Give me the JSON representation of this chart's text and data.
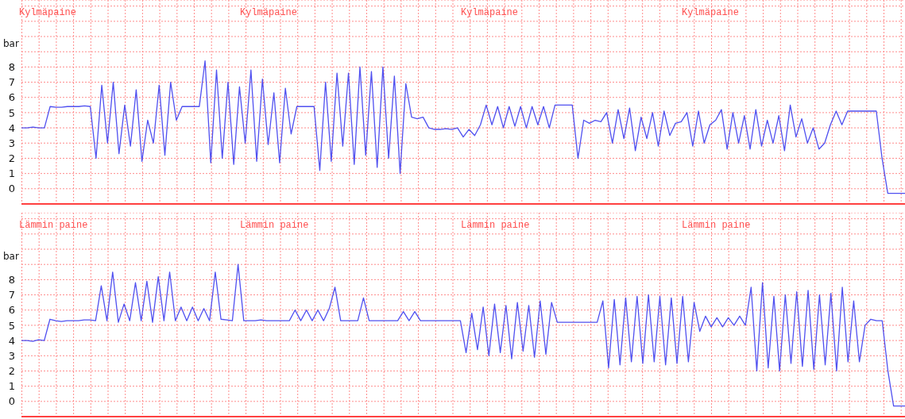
{
  "chart_data": [
    {
      "type": "line",
      "ylabel": "bar",
      "annotations": [
        "Kylmäpaine",
        "Kylmäpaine",
        "Kylmäpaine",
        "Kylmäpaine"
      ],
      "categories": [
        null,
        null,
        null,
        null,
        null,
        null,
        null,
        null,
        null,
        null,
        null,
        null,
        null,
        null,
        null,
        null,
        null,
        null,
        null,
        null,
        null,
        null,
        null,
        null,
        null,
        null,
        null,
        null,
        null,
        null,
        null,
        null,
        null,
        null,
        null,
        null,
        null,
        null,
        null,
        null,
        null,
        null,
        null,
        null,
        null,
        null,
        null,
        null,
        null,
        null,
        null,
        null,
        null,
        null,
        null,
        null,
        null,
        null,
        null,
        null,
        null,
        null,
        null,
        null,
        null,
        null,
        null,
        null,
        null,
        null,
        null,
        null,
        null,
        null,
        null,
        null,
        null,
        null,
        null,
        null,
        null,
        null,
        null,
        null,
        null,
        null,
        null,
        null,
        null,
        null,
        null,
        null,
        null,
        null,
        null,
        null,
        null,
        null,
        null,
        null,
        null,
        null,
        null,
        null,
        null,
        null,
        null,
        null,
        null,
        null,
        null,
        null,
        null,
        null,
        null,
        null,
        null,
        null,
        null,
        null,
        null,
        null,
        null,
        null,
        null,
        null,
        null,
        null,
        null,
        null,
        null,
        null,
        null,
        null,
        null,
        null,
        null,
        null,
        null,
        null,
        null,
        null,
        null,
        null,
        null,
        null,
        null,
        null,
        null,
        null,
        null,
        null,
        null,
        null,
        null
      ],
      "series": [
        {
          "color": "#5050f0",
          "values": [
            4.0,
            4.0,
            4.05,
            4.0,
            4.0,
            5.4,
            5.35,
            5.35,
            5.4,
            5.4,
            5.4,
            5.45,
            5.4,
            2.0,
            6.8,
            3.0,
            7.0,
            2.3,
            5.5,
            2.8,
            6.5,
            1.8,
            4.5,
            3.0,
            6.8,
            2.2,
            7.0,
            4.5,
            5.4,
            5.4,
            5.4,
            5.4,
            8.4,
            1.7,
            7.8,
            2.0,
            7.0,
            1.6,
            6.7,
            3.0,
            7.8,
            1.8,
            7.2,
            2.9,
            6.3,
            1.7,
            6.6,
            3.6,
            5.4,
            5.4,
            5.4,
            5.4,
            1.2,
            7.0,
            1.8,
            7.6,
            2.8,
            7.6,
            1.6,
            8.0,
            2.2,
            7.7,
            1.4,
            8.0,
            2.0,
            7.4,
            1.0,
            6.9,
            4.7,
            4.6,
            4.7,
            4.0,
            3.9,
            3.9,
            3.95,
            3.9,
            4.0,
            3.4,
            3.9,
            3.5,
            4.2,
            5.5,
            4.2,
            5.4,
            4.0,
            5.4,
            4.1,
            5.4,
            4.0,
            5.4,
            4.2,
            5.4,
            4.0,
            5.5,
            5.5,
            5.5,
            5.5,
            2.0,
            4.5,
            4.3,
            4.5,
            4.4,
            5.0,
            3.0,
            5.2,
            3.3,
            5.3,
            2.5,
            4.7,
            3.3,
            5.0,
            2.8,
            5.1,
            3.5,
            4.3,
            4.4,
            5.0,
            2.8,
            5.1,
            3.0,
            4.2,
            4.5,
            5.2,
            2.6,
            5.0,
            3.0,
            4.8,
            2.6,
            5.2,
            2.8,
            4.5,
            3.0,
            4.8,
            2.5,
            5.5,
            3.4,
            4.6,
            3.0,
            4.0,
            2.6,
            3.0,
            4.2,
            5.1,
            4.2,
            5.1,
            5.1,
            5.1,
            5.1,
            5.1,
            5.1,
            2.0,
            -0.3,
            -0.3,
            -0.3,
            -0.3
          ]
        }
      ],
      "ylim": [
        -1,
        12.4
      ],
      "yticks": [
        0,
        1,
        2,
        3,
        4,
        5,
        6,
        7,
        8,
        {
          "value": 9,
          "label": null
        },
        {
          "value": 10,
          "label": null
        },
        {
          "value": 11,
          "label": null
        },
        {
          "value": 12,
          "label": null
        }
      ],
      "grid": true,
      "tick_labels": "y",
      "legend": false,
      "marker": "none",
      "line_style": "solid"
    },
    {
      "type": "line",
      "ylabel": "bar",
      "annotations": [
        "Lämmin paine",
        "Lämmin paine",
        "Lämmin paine",
        "Lämmin paine"
      ],
      "categories": [
        null,
        null,
        null,
        null,
        null,
        null,
        null,
        null,
        null,
        null,
        null,
        null,
        null,
        null,
        null,
        null,
        null,
        null,
        null,
        null,
        null,
        null,
        null,
        null,
        null,
        null,
        null,
        null,
        null,
        null,
        null,
        null,
        null,
        null,
        null,
        null,
        null,
        null,
        null,
        null,
        null,
        null,
        null,
        null,
        null,
        null,
        null,
        null,
        null,
        null,
        null,
        null,
        null,
        null,
        null,
        null,
        null,
        null,
        null,
        null,
        null,
        null,
        null,
        null,
        null,
        null,
        null,
        null,
        null,
        null,
        null,
        null,
        null,
        null,
        null,
        null,
        null,
        null,
        null,
        null,
        null,
        null,
        null,
        null,
        null,
        null,
        null,
        null,
        null,
        null,
        null,
        null,
        null,
        null,
        null,
        null,
        null,
        null,
        null,
        null,
        null,
        null,
        null,
        null,
        null,
        null,
        null,
        null,
        null,
        null,
        null,
        null,
        null,
        null,
        null,
        null,
        null,
        null,
        null,
        null,
        null,
        null,
        null,
        null,
        null,
        null,
        null,
        null,
        null,
        null,
        null,
        null,
        null,
        null,
        null,
        null,
        null,
        null,
        null,
        null,
        null,
        null,
        null,
        null,
        null,
        null,
        null,
        null,
        null,
        null,
        null,
        null,
        null,
        null,
        null,
        null
      ],
      "series": [
        {
          "color": "#5050f0",
          "values": [
            4.0,
            4.0,
            3.95,
            4.05,
            4.0,
            5.4,
            5.3,
            5.25,
            5.3,
            5.3,
            5.3,
            5.35,
            5.35,
            5.3,
            7.6,
            5.3,
            8.5,
            5.2,
            6.4,
            5.3,
            7.8,
            5.3,
            7.9,
            5.2,
            8.2,
            5.3,
            8.5,
            5.3,
            6.2,
            5.3,
            6.2,
            5.3,
            6.1,
            5.3,
            8.5,
            5.4,
            5.35,
            5.3,
            9.0,
            5.3,
            5.3,
            5.3,
            5.35,
            5.3,
            5.3,
            5.3,
            5.3,
            5.3,
            6.0,
            5.3,
            6.0,
            5.3,
            6.0,
            5.3,
            6.1,
            7.5,
            5.3,
            5.3,
            5.3,
            5.3,
            6.8,
            5.3,
            5.3,
            5.3,
            5.3,
            5.3,
            5.3,
            5.9,
            5.3,
            5.9,
            5.3,
            5.3,
            5.3,
            5.3,
            5.3,
            5.3,
            5.3,
            5.3,
            3.2,
            5.8,
            3.4,
            6.2,
            3.0,
            6.4,
            3.2,
            6.3,
            2.8,
            6.5,
            3.3,
            6.3,
            2.9,
            6.6,
            3.1,
            6.5,
            5.2,
            5.2,
            5.2,
            5.2,
            5.2,
            5.2,
            5.2,
            5.2,
            6.6,
            2.2,
            6.7,
            2.4,
            6.8,
            2.6,
            6.9,
            2.5,
            7.0,
            2.6,
            6.9,
            2.4,
            6.8,
            2.5,
            6.9,
            2.6,
            6.5,
            4.6,
            5.6,
            4.9,
            5.5,
            4.9,
            5.5,
            5.0,
            5.6,
            5.0,
            7.5,
            2.0,
            7.8,
            2.2,
            6.9,
            2.0,
            7.0,
            2.5,
            7.2,
            2.3,
            7.3,
            2.1,
            7.0,
            2.4,
            7.1,
            2.0,
            7.5,
            2.6,
            6.6,
            2.6,
            5.0,
            5.4,
            5.3,
            5.3,
            2.0,
            -0.3,
            -0.3,
            -0.3
          ]
        }
      ],
      "ylim": [
        -1,
        12.4
      ],
      "yticks": [
        0,
        1,
        2,
        3,
        4,
        5,
        6,
        7,
        8,
        {
          "value": 9,
          "label": null
        },
        {
          "value": 10,
          "label": null
        },
        {
          "value": 11,
          "label": null
        },
        {
          "value": 12,
          "label": null
        }
      ],
      "grid": true,
      "tick_labels": "y",
      "legend": false,
      "marker": "none",
      "line_style": "solid"
    }
  ]
}
